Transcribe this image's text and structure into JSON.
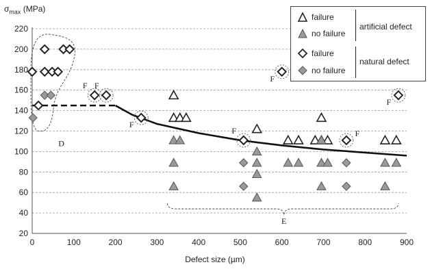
{
  "chart_data": {
    "type": "scatter",
    "title": "",
    "ylabel_main": "σ",
    "ylabel_sub": "max",
    "ylabel_unit": " (MPa)",
    "xlabel": "Defect size (µm)",
    "xlim": [
      0,
      900
    ],
    "ylim": [
      20,
      220
    ],
    "xticks": [
      0,
      100,
      200,
      300,
      400,
      500,
      600,
      700,
      800,
      900
    ],
    "yticks": [
      20,
      40,
      60,
      80,
      100,
      120,
      140,
      160,
      180,
      200,
      220
    ],
    "grid": "horizontal-dashed",
    "legend": {
      "placement": "top-right",
      "entries": [
        "failure",
        "no failure",
        "failure",
        "no failure"
      ],
      "groups": [
        "artificial defect",
        "natural defect"
      ]
    },
    "series": [
      {
        "name": "artificial defect failure",
        "marker": "triangle-open",
        "points": [
          [
            340,
            155
          ],
          [
            340,
            133
          ],
          [
            355,
            133
          ],
          [
            370,
            133
          ],
          [
            540,
            122
          ],
          [
            615,
            111
          ],
          [
            640,
            111
          ],
          [
            680,
            111
          ],
          [
            695,
            133
          ],
          [
            695,
            111
          ],
          [
            710,
            111
          ],
          [
            848,
            111
          ],
          [
            875,
            111
          ]
        ]
      },
      {
        "name": "artificial defect no failure",
        "marker": "triangle-filled",
        "points": [
          [
            340,
            111
          ],
          [
            355,
            111
          ],
          [
            340,
            89
          ],
          [
            340,
            66
          ],
          [
            540,
            100
          ],
          [
            540,
            89
          ],
          [
            540,
            78
          ],
          [
            540,
            55
          ],
          [
            615,
            89
          ],
          [
            640,
            89
          ],
          [
            695,
            89
          ],
          [
            710,
            89
          ],
          [
            695,
            66
          ],
          [
            848,
            89
          ],
          [
            875,
            89
          ],
          [
            848,
            66
          ],
          [
            695,
            111
          ]
        ]
      },
      {
        "name": "natural defect failure",
        "marker": "diamond-open",
        "points": [
          [
            0,
            178
          ],
          [
            30,
            200
          ],
          [
            75,
            200
          ],
          [
            90,
            200
          ],
          [
            30,
            178
          ],
          [
            48,
            178
          ],
          [
            62,
            178
          ],
          [
            15,
            145
          ],
          [
            150,
            155
          ],
          [
            178,
            155
          ],
          [
            262,
            133
          ],
          [
            508,
            111
          ],
          [
            600,
            178
          ],
          [
            755,
            111
          ],
          [
            880,
            155
          ]
        ]
      },
      {
        "name": "natural defect no failure",
        "marker": "diamond-filled",
        "points": [
          [
            2,
            133
          ],
          [
            30,
            155
          ],
          [
            45,
            155
          ],
          [
            508,
            89
          ],
          [
            508,
            66
          ],
          [
            755,
            89
          ],
          [
            755,
            66
          ]
        ]
      }
    ],
    "fit_curve": {
      "points": [
        [
          0,
          145
        ],
        [
          200,
          145
        ],
        [
          240,
          136
        ],
        [
          300,
          127
        ],
        [
          400,
          118
        ],
        [
          500,
          111
        ],
        [
          600,
          106
        ],
        [
          700,
          102
        ],
        [
          800,
          99
        ],
        [
          900,
          96
        ]
      ]
    },
    "annotations": {
      "F": [
        [
          150,
          155
        ],
        [
          178,
          155
        ],
        [
          262,
          133
        ],
        [
          508,
          111
        ],
        [
          600,
          178
        ],
        [
          755,
          111
        ],
        [
          880,
          155
        ]
      ],
      "D": "D",
      "E": "E",
      "F_label": "F"
    }
  }
}
